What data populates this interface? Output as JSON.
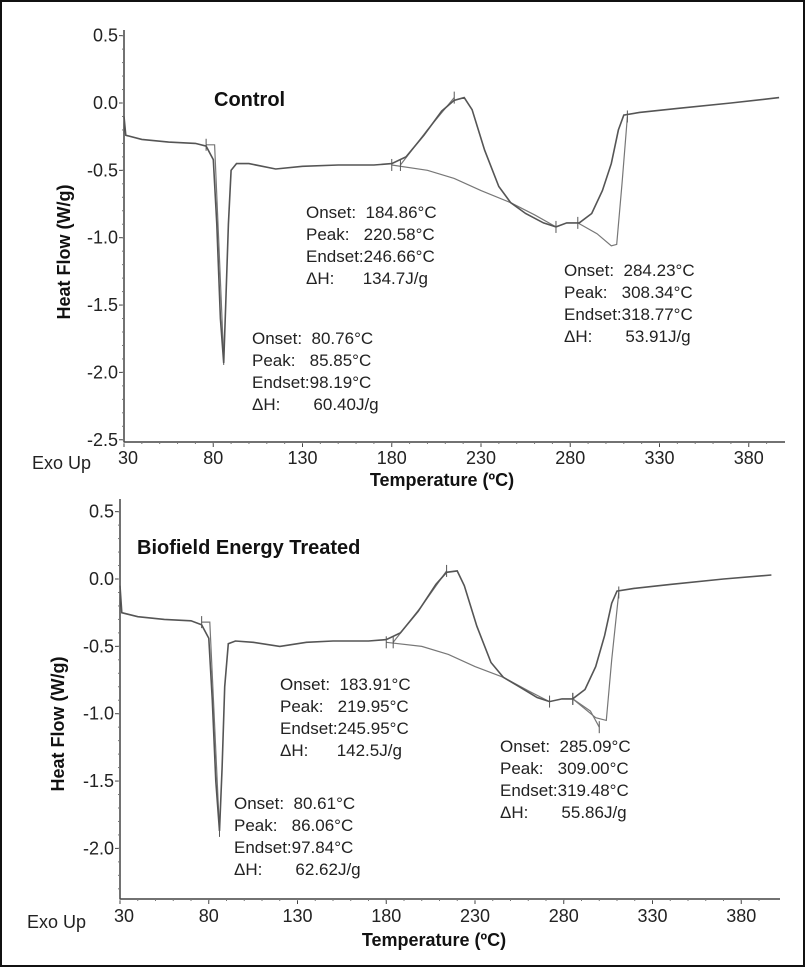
{
  "chart_data": [
    {
      "type": "line",
      "title": "Control",
      "xlabel": "Temperature (ºC)",
      "ylabel": "Heat Flow (W/g)",
      "corner_label": "Exo Up",
      "xlim": [
        30,
        397
      ],
      "ylim": [
        -2.5,
        0.5
      ],
      "xticks": [
        "30",
        "80",
        "130",
        "180",
        "230",
        "280",
        "330",
        "380"
      ],
      "yticks": [
        "0.5",
        "0.0",
        "-0.5",
        "-1.0",
        "-1.5",
        "-2.0",
        "-2.5"
      ],
      "grid": false,
      "line_color": "#555555",
      "curve": [
        [
          30,
          -0.1
        ],
        [
          31,
          -0.24
        ],
        [
          40,
          -0.27
        ],
        [
          55,
          -0.29
        ],
        [
          70,
          -0.3
        ],
        [
          76,
          -0.32
        ],
        [
          80,
          -0.42
        ],
        [
          82,
          -0.9
        ],
        [
          84,
          -1.6
        ],
        [
          85.85,
          -1.93
        ],
        [
          87,
          -1.5
        ],
        [
          88.5,
          -0.9
        ],
        [
          90,
          -0.5
        ],
        [
          93,
          -0.45
        ],
        [
          100,
          -0.45
        ],
        [
          115,
          -0.49
        ],
        [
          130,
          -0.47
        ],
        [
          150,
          -0.46
        ],
        [
          170,
          -0.46
        ],
        [
          180,
          -0.45
        ],
        [
          188,
          -0.4
        ],
        [
          198,
          -0.24
        ],
        [
          208,
          -0.06
        ],
        [
          215,
          0.02
        ],
        [
          220.58,
          0.04
        ],
        [
          225,
          -0.05
        ],
        [
          232,
          -0.35
        ],
        [
          240,
          -0.62
        ],
        [
          246.66,
          -0.74
        ],
        [
          255,
          -0.82
        ],
        [
          265,
          -0.89
        ],
        [
          272,
          -0.92
        ],
        [
          278,
          -0.89
        ],
        [
          285,
          -0.89
        ],
        [
          292,
          -0.82
        ],
        [
          298,
          -0.65
        ],
        [
          303,
          -0.45
        ],
        [
          307,
          -0.2
        ],
        [
          310,
          -0.09
        ],
        [
          318.77,
          -0.07
        ],
        [
          340,
          -0.04
        ],
        [
          370,
          0.0
        ],
        [
          397,
          0.04
        ]
      ],
      "construction_lines": [
        [
          [
            76,
            -0.31
          ],
          [
            80.76,
            -0.31
          ],
          [
            83,
            -1.0
          ],
          [
            85.85,
            -1.9
          ]
        ],
        [
          [
            180,
            -0.46
          ],
          [
            200,
            -0.5
          ],
          [
            215,
            -0.56
          ],
          [
            230,
            -0.65
          ],
          [
            246.66,
            -0.74
          ],
          [
            260,
            -0.83
          ],
          [
            272,
            -0.92
          ]
        ],
        [
          [
            184.86,
            -0.46
          ],
          [
            200,
            -0.2
          ],
          [
            215,
            0.04
          ]
        ],
        [
          [
            284.23,
            -0.89
          ],
          [
            295,
            -0.97
          ],
          [
            303,
            -1.06
          ],
          [
            306,
            -1.05
          ],
          [
            309,
            -0.6
          ],
          [
            312,
            -0.1
          ]
        ]
      ],
      "annotations": [
        {
          "lines": [
            "Onset:  184.86°C",
            "Peak:   220.58°C",
            "Endset:246.66°C",
            "ΔH:      134.7J/g"
          ]
        },
        {
          "lines": [
            "Onset:  284.23°C",
            "Peak:   308.34°C",
            "Endset:318.77°C",
            "ΔH:       53.91J/g"
          ]
        },
        {
          "lines": [
            "Onset:  80.76°C",
            "Peak:   85.85°C",
            "Endset:98.19°C",
            "ΔH:       60.40J/g"
          ]
        }
      ]
    },
    {
      "type": "line",
      "title": "Biofield Energy Treated",
      "xlabel": "Temperature (ºC)",
      "ylabel": "Heat Flow (W/g)",
      "corner_label": "Exo Up",
      "xlim": [
        30,
        397
      ],
      "ylim": [
        -2.4,
        0.6
      ],
      "xticks": [
        "30",
        "80",
        "130",
        "180",
        "230",
        "280",
        "330",
        "380"
      ],
      "yticks": [
        "0.5",
        "0.0",
        "-0.5",
        "-1.0",
        "-1.5",
        "-2.0"
      ],
      "grid": false,
      "line_color": "#555555",
      "curve": [
        [
          30,
          -0.05
        ],
        [
          31,
          -0.25
        ],
        [
          40,
          -0.28
        ],
        [
          55,
          -0.3
        ],
        [
          70,
          -0.31
        ],
        [
          76,
          -0.34
        ],
        [
          80,
          -0.44
        ],
        [
          82,
          -0.9
        ],
        [
          84,
          -1.5
        ],
        [
          86.06,
          -1.87
        ],
        [
          87.5,
          -1.4
        ],
        [
          89,
          -0.8
        ],
        [
          91,
          -0.48
        ],
        [
          95,
          -0.46
        ],
        [
          105,
          -0.47
        ],
        [
          120,
          -0.5
        ],
        [
          135,
          -0.47
        ],
        [
          150,
          -0.46
        ],
        [
          170,
          -0.46
        ],
        [
          180,
          -0.45
        ],
        [
          188,
          -0.4
        ],
        [
          198,
          -0.24
        ],
        [
          208,
          -0.04
        ],
        [
          214,
          0.05
        ],
        [
          219.95,
          0.06
        ],
        [
          224,
          -0.05
        ],
        [
          231,
          -0.35
        ],
        [
          239,
          -0.62
        ],
        [
          245.95,
          -0.73
        ],
        [
          255,
          -0.8
        ],
        [
          265,
          -0.88
        ],
        [
          272,
          -0.91
        ],
        [
          279,
          -0.89
        ],
        [
          285,
          -0.89
        ],
        [
          292,
          -0.82
        ],
        [
          298,
          -0.65
        ],
        [
          303,
          -0.42
        ],
        [
          307,
          -0.18
        ],
        [
          310,
          -0.09
        ],
        [
          319.48,
          -0.07
        ],
        [
          340,
          -0.04
        ],
        [
          370,
          0.0
        ],
        [
          397,
          0.03
        ]
      ],
      "construction_lines": [
        [
          [
            76,
            -0.32
          ],
          [
            80.61,
            -0.32
          ],
          [
            83,
            -1.0
          ],
          [
            86.06,
            -1.87
          ]
        ],
        [
          [
            180,
            -0.47
          ],
          [
            200,
            -0.5
          ],
          [
            215,
            -0.56
          ],
          [
            230,
            -0.65
          ],
          [
            245.95,
            -0.73
          ],
          [
            260,
            -0.83
          ],
          [
            272,
            -0.91
          ]
        ],
        [
          [
            183.91,
            -0.47
          ],
          [
            200,
            -0.2
          ],
          [
            214,
            0.06
          ]
        ],
        [
          [
            285.09,
            -0.89
          ],
          [
            295,
            -0.98
          ],
          [
            300,
            -1.1
          ]
        ],
        [
          [
            285.09,
            -0.89
          ],
          [
            298,
            -1.03
          ],
          [
            304,
            -1.05
          ],
          [
            307,
            -0.6
          ],
          [
            311,
            -0.1
          ]
        ]
      ],
      "annotations": [
        {
          "lines": [
            "Onset:  183.91°C",
            "Peak:   219.95°C",
            "Endset:245.95°C",
            "ΔH:      142.5J/g"
          ]
        },
        {
          "lines": [
            "Onset:  285.09°C",
            "Peak:   309.00°C",
            "Endset:319.48°C",
            "ΔH:       55.86J/g"
          ]
        },
        {
          "lines": [
            "Onset:  80.61°C",
            "Peak:   86.06°C",
            "Endset:97.84°C",
            "ΔH:       62.62J/g"
          ]
        }
      ]
    }
  ]
}
